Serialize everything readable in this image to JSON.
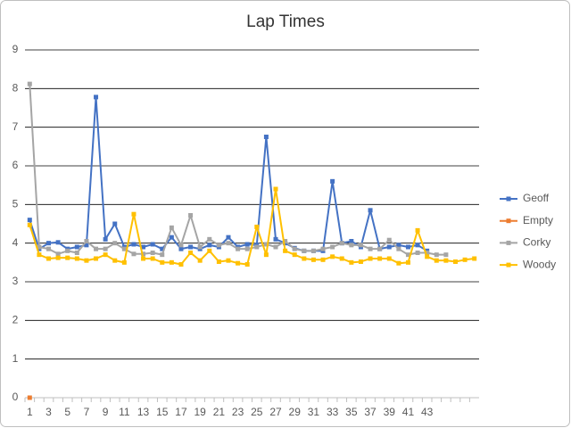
{
  "chart_data": {
    "type": "line",
    "title": "Lap Times",
    "categories": [
      "1",
      null,
      "3",
      null,
      "5",
      null,
      "7",
      null,
      "9",
      null,
      "11",
      null,
      "13",
      null,
      "15",
      null,
      "17",
      null,
      "19",
      null,
      "21",
      null,
      "23",
      null,
      "25",
      null,
      "27",
      null,
      "29",
      null,
      "31",
      null,
      "33",
      null,
      "35",
      null,
      "37",
      null,
      "39",
      null,
      "41",
      null,
      "43",
      null,
      null,
      null,
      null,
      null
    ],
    "series": [
      {
        "name": "Geoff",
        "color": "#4472c4",
        "values": [
          4.6,
          3.85,
          4.0,
          4.02,
          3.85,
          3.9,
          3.95,
          7.78,
          4.1,
          4.5,
          3.9,
          3.97,
          3.9,
          3.97,
          3.85,
          4.15,
          3.85,
          3.9,
          3.85,
          3.95,
          3.9,
          4.15,
          3.9,
          3.97,
          3.95,
          6.75,
          4.1,
          4.0,
          3.87,
          3.8,
          3.8,
          3.8,
          5.6,
          4.0,
          4.05,
          3.9,
          4.85,
          3.85,
          3.9,
          3.95,
          3.9,
          3.95,
          3.8,
          null,
          null,
          null,
          null,
          null
        ]
      },
      {
        "name": "Empty",
        "color": "#ed7d31",
        "values": [
          0,
          null,
          null,
          null,
          null,
          null,
          null,
          null,
          null,
          null,
          null,
          null,
          null,
          null,
          null,
          null,
          null,
          null,
          null,
          null,
          null,
          null,
          null,
          null,
          null,
          null,
          null,
          null,
          null,
          null,
          null,
          null,
          null,
          null,
          null,
          null,
          null,
          null,
          null,
          null,
          null,
          null,
          null,
          null,
          null,
          null,
          null,
          null
        ]
      },
      {
        "name": "Corky",
        "color": "#a5a5a5",
        "values": [
          8.12,
          3.9,
          3.85,
          3.72,
          3.8,
          3.75,
          4.05,
          3.85,
          3.85,
          4.0,
          3.85,
          3.72,
          3.72,
          3.75,
          3.7,
          4.4,
          3.95,
          4.72,
          3.9,
          4.1,
          3.95,
          4.0,
          3.85,
          3.85,
          3.9,
          3.97,
          3.9,
          4.05,
          3.85,
          3.8,
          3.8,
          3.85,
          3.9,
          4.0,
          3.95,
          3.95,
          3.85,
          3.85,
          4.08,
          3.85,
          3.7,
          3.75,
          3.75,
          3.7,
          3.7,
          null,
          null,
          null
        ]
      },
      {
        "name": "Woody",
        "color": "#ffc000",
        "values": [
          4.47,
          3.7,
          3.6,
          3.62,
          3.62,
          3.6,
          3.55,
          3.6,
          3.7,
          3.55,
          3.5,
          4.75,
          3.6,
          3.6,
          3.5,
          3.5,
          3.45,
          3.75,
          3.55,
          3.8,
          3.52,
          3.55,
          3.48,
          3.45,
          4.42,
          3.7,
          5.4,
          3.8,
          3.7,
          3.6,
          3.57,
          3.57,
          3.65,
          3.6,
          3.5,
          3.52,
          3.6,
          3.6,
          3.6,
          3.48,
          3.5,
          4.33,
          3.65,
          3.55,
          3.55,
          3.52,
          3.57,
          3.6
        ]
      }
    ],
    "ylim": [
      0,
      9
    ],
    "yticks": [
      0,
      1,
      2,
      3,
      4,
      5,
      6,
      7,
      8,
      9
    ],
    "grid": true,
    "legend": "right"
  }
}
